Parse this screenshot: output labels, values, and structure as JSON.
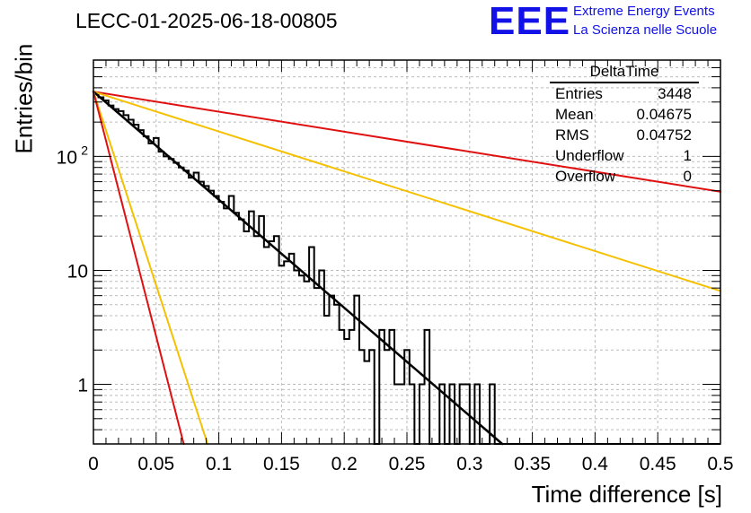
{
  "header": {
    "run_title": "LECC-01-2025-06-18-00805"
  },
  "logo": {
    "text": "EEE",
    "line1": "Extreme Energy Events",
    "line2": "La Scienza nelle Scuole"
  },
  "stats": {
    "title": "DeltaTime",
    "rows": [
      {
        "label": "Entries",
        "value": "3448"
      },
      {
        "label": "Mean",
        "value": "0.04675"
      },
      {
        "label": "RMS",
        "value": "0.04752"
      },
      {
        "label": "Underflow",
        "value": "1"
      },
      {
        "label": "Overflow",
        "value": "0"
      }
    ]
  },
  "chart_data": {
    "type": "histogram",
    "title": "LECC-01-2025-06-18-00805",
    "xlabel": "Time difference [s]",
    "ylabel": "Entries/bin",
    "xlim": [
      0,
      0.5
    ],
    "ylim": [
      0.3,
      700
    ],
    "yscale": "log",
    "grid": true,
    "xticks": [
      "0",
      "0.05",
      "0.1",
      "0.15",
      "0.2",
      "0.25",
      "0.3",
      "0.35",
      "0.4",
      "0.45",
      "0.5"
    ],
    "yticks": [
      {
        "value": 1,
        "label": "1"
      },
      {
        "value": 10,
        "label": "10"
      },
      {
        "value": 100,
        "label": "10",
        "exp": "2"
      }
    ],
    "bin_width": 0.004,
    "histogram": [
      360,
      330,
      310,
      280,
      260,
      250,
      230,
      210,
      190,
      170,
      150,
      130,
      145,
      110,
      100,
      95,
      88,
      80,
      75,
      65,
      72,
      60,
      55,
      50,
      45,
      40,
      35,
      45,
      32,
      28,
      22,
      33,
      20,
      30,
      16,
      18,
      20,
      11,
      12,
      14,
      10,
      9,
      8,
      16,
      7,
      10,
      4,
      6,
      5,
      3,
      2.5,
      3,
      6,
      2,
      1.6,
      2,
      0,
      3,
      2,
      3,
      1,
      1,
      2,
      1,
      0,
      1,
      3,
      0,
      0,
      1,
      0,
      1,
      0,
      1,
      1,
      0,
      1,
      0,
      0,
      1,
      0,
      0,
      0,
      0,
      0,
      0,
      0,
      0,
      0,
      0,
      0,
      0,
      0,
      0,
      0,
      0,
      0,
      0,
      0,
      0,
      0,
      0,
      0,
      0,
      0,
      0,
      0,
      0,
      0,
      0,
      0,
      0,
      0,
      0,
      0,
      0,
      0,
      0,
      0,
      0,
      0,
      0,
      0,
      0,
      0
    ],
    "series": [
      {
        "type": "exponential",
        "x0": 0,
        "y_at_x0": 370,
        "x1": 0.5,
        "y_at_x1": 49,
        "color": "#e01010"
      },
      {
        "type": "exponential",
        "x0": 0,
        "y_at_x0": 370,
        "x1": 0.5,
        "y_at_x1": 6.6,
        "color": "#f5c000"
      },
      {
        "type": "exponential",
        "x0": 0,
        "y_at_x0": 370,
        "x1": 0.326,
        "y_at_x1": 0.3,
        "color": "#000000"
      },
      {
        "type": "exponential",
        "x0": 0,
        "y_at_x0": 370,
        "x1": 0.091,
        "y_at_x1": 0.3,
        "color": "#f5c000"
      },
      {
        "type": "exponential",
        "x0": 0,
        "y_at_x0": 370,
        "x1": 0.072,
        "y_at_x1": 0.3,
        "color": "#e01010"
      }
    ]
  }
}
